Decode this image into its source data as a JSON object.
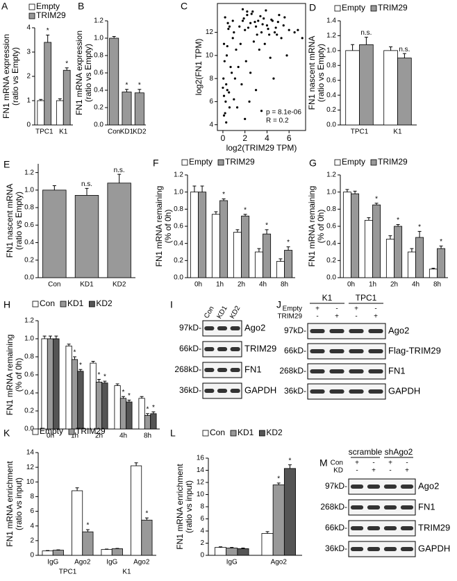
{
  "chart_data": [
    {
      "type": "bar",
      "panel": "A",
      "ylabel": [
        "FN1 mRNA expression",
        "(ratio vs Empty)"
      ],
      "categories": [
        "TPC1",
        "K1"
      ],
      "series": [
        {
          "name": "Empty",
          "color": "#ffffff",
          "values": [
            1.0,
            1.0
          ],
          "errors": [
            0.05,
            0.08
          ],
          "annotations": [
            null,
            null
          ]
        },
        {
          "name": "TRIM29",
          "color": "#999999",
          "values": [
            3.4,
            2.25
          ],
          "errors": [
            0.3,
            0.1
          ],
          "annotations": [
            "*",
            "*"
          ]
        }
      ],
      "ylim": [
        0,
        4
      ],
      "yticks": [
        0,
        1,
        2,
        3,
        4
      ]
    },
    {
      "type": "bar",
      "panel": "B",
      "ylabel": [
        "FN1 mRNA expression",
        "(ratio vs Empty)"
      ],
      "categories": [
        "Con",
        "KD1",
        "KD2"
      ],
      "series": [
        {
          "color": "#999999",
          "values": [
            1.0,
            0.38,
            0.37
          ],
          "errors": [
            0.02,
            0.03,
            0.04
          ],
          "annotations": [
            null,
            "*",
            "*"
          ]
        }
      ],
      "ylim": [
        0,
        1.2
      ],
      "yticks": [
        {
          "value": 0,
          "label": "0.0"
        },
        0.2,
        0.4,
        0.6,
        0.8,
        {
          "value": 1,
          "label": "1.0"
        },
        1.2
      ]
    },
    {
      "type": "scatter",
      "panel": "C",
      "xlabel": "log2(TRIM29 TPM)",
      "ylabel": "log2(FN1 TPM)",
      "annotations": [
        "p = 8.1e-06",
        "R = 0.2"
      ],
      "x": [
        0.1,
        0.2,
        0.05,
        0.3,
        0.15,
        0.4,
        0.1,
        0.25,
        0.5,
        0.6,
        0.2,
        0.35,
        0.8,
        0.1,
        0.45,
        0.7,
        0.3,
        0.9,
        1.0,
        0.55,
        1.2,
        1.5,
        1.8,
        2.0,
        2.2,
        2.5,
        2.7,
        3.0,
        3.2,
        3.5,
        3.7,
        4.0,
        4.2,
        4.5,
        4.8,
        5.0,
        5.3,
        5.6,
        6.0,
        6.5,
        1.6,
        1.9,
        2.3,
        2.6,
        2.9,
        3.1,
        3.4,
        3.6,
        3.9,
        4.1,
        4.4,
        4.7,
        5.1,
        5.5,
        2.1,
        2.8,
        3.3,
        3.8,
        4.3,
        4.9,
        1.1,
        1.4,
        1.7,
        2.4,
        3.0,
        0.6,
        0.9,
        1.3,
        2.0,
        2.5,
        7.2,
        6.8,
        0.0,
        0.4,
        1.0,
        3.5,
        4.6,
        5.8,
        2.2,
        1.8
      ],
      "y": [
        6.5,
        5.0,
        8.0,
        4.2,
        9.5,
        7.0,
        11.0,
        6.0,
        12.3,
        5.5,
        13.3,
        10.0,
        8.5,
        4.8,
        12.8,
        9.0,
        7.5,
        11.5,
        12.0,
        6.8,
        10.5,
        12.5,
        13.0,
        12.2,
        13.5,
        12.8,
        13.8,
        12.5,
        13.0,
        12.0,
        13.2,
        12.6,
        11.8,
        13.0,
        12.4,
        12.9,
        11.5,
        13.3,
        12.2,
        12.0,
        11.0,
        13.2,
        12.4,
        13.6,
        12.9,
        11.8,
        13.4,
        12.7,
        13.9,
        12.3,
        13.1,
        12.0,
        13.5,
        12.6,
        9.5,
        11.2,
        10.5,
        11.0,
        9.8,
        11.8,
        8.0,
        9.0,
        7.5,
        6.0,
        7.0,
        12.5,
        13.0,
        5.5,
        4.5,
        8.5,
        11.5,
        12.2,
        7.2,
        10.8,
        6.2,
        5.2,
        8.0,
        10.0,
        13.8,
        14.0
      ],
      "color": "#000000",
      "xlim": [
        -0.5,
        7.5
      ],
      "xticks": [
        0,
        2,
        4,
        6
      ],
      "ylim": [
        3.5,
        14.5
      ],
      "yticks": [
        4,
        6,
        8,
        10,
        12
      ]
    },
    {
      "type": "bar",
      "panel": "D",
      "ylabel": [
        "FN1 nascent mRNA",
        "(ratio vs Empty)"
      ],
      "categories": [
        "TPC1",
        "K1"
      ],
      "series": [
        {
          "name": "Empty",
          "color": "#ffffff",
          "values": [
            1.0,
            1.0
          ],
          "errors": [
            0.08,
            0.05
          ],
          "annotations": [
            null,
            null
          ]
        },
        {
          "name": "TRIM29",
          "color": "#999999",
          "values": [
            1.08,
            0.9
          ],
          "errors": [
            0.1,
            0.06
          ],
          "annotations": [
            "n.s.",
            "n.s."
          ]
        }
      ],
      "ylim": [
        0,
        1.4
      ],
      "yticks": [
        {
          "value": 0,
          "label": "0.0"
        },
        0.2,
        0.4,
        0.6,
        0.8,
        {
          "value": 1,
          "label": "1.0"
        },
        1.2,
        1.4
      ]
    },
    {
      "type": "bar",
      "panel": "E",
      "ylabel": [
        "FN1 nascent mRNA",
        "(ratio vs Empty)"
      ],
      "categories": [
        "Con",
        "KD1",
        "KD2"
      ],
      "series": [
        {
          "color": "#999999",
          "values": [
            1.0,
            0.94,
            1.08
          ],
          "errors": [
            0.05,
            0.08,
            0.1
          ],
          "annotations": [
            null,
            "n.s.",
            "n.s."
          ]
        }
      ],
      "ylim": [
        0,
        1.3
      ],
      "yticks": [
        {
          "value": 0,
          "label": "0.0"
        },
        0.2,
        0.4,
        0.6,
        0.8,
        {
          "value": 1,
          "label": "1.0"
        },
        1.2
      ]
    },
    {
      "type": "bar",
      "panel": "F",
      "ylabel": [
        "FN1 mRNA remaining",
        "(% of 0h)"
      ],
      "categories": [
        "0h",
        "1h",
        "2h",
        "4h",
        "8h"
      ],
      "series": [
        {
          "name": "Empty",
          "color": "#ffffff",
          "values": [
            1.0,
            0.74,
            0.53,
            0.3,
            0.19
          ],
          "errors": [
            0.07,
            0.03,
            0.03,
            0.04,
            0.03
          ],
          "annotations": [
            null,
            null,
            null,
            null,
            null
          ]
        },
        {
          "name": "TRIM29",
          "color": "#999999",
          "values": [
            1.0,
            0.9,
            0.72,
            0.51,
            0.32
          ],
          "errors": [
            0.07,
            0.02,
            0.02,
            0.05,
            0.04
          ],
          "annotations": [
            null,
            "*",
            "*",
            "*",
            "*"
          ]
        }
      ],
      "ylim": [
        0,
        1.2
      ],
      "yticks": [
        {
          "value": 0,
          "label": "0.0"
        },
        0.2,
        0.4,
        0.6,
        0.8,
        {
          "value": 1,
          "label": "1.0"
        },
        1.2
      ]
    },
    {
      "type": "bar",
      "panel": "G",
      "ylabel": [
        "FN1 mRNA remaining",
        "(% of 0h)"
      ],
      "categories": [
        "0h",
        "1h",
        "2h",
        "4h",
        "8h"
      ],
      "series": [
        {
          "name": "Empty",
          "color": "#ffffff",
          "values": [
            1.0,
            0.67,
            0.45,
            0.3,
            0.1
          ],
          "errors": [
            0.03,
            0.03,
            0.04,
            0.04,
            0.01
          ],
          "annotations": [
            null,
            null,
            null,
            null,
            null
          ]
        },
        {
          "name": "TRIM29",
          "color": "#999999",
          "values": [
            0.98,
            0.85,
            0.6,
            0.47,
            0.34
          ],
          "errors": [
            0.03,
            0.02,
            0.02,
            0.07,
            0.03
          ],
          "annotations": [
            null,
            "*",
            "*",
            "*",
            "*"
          ]
        }
      ],
      "ylim": [
        0,
        1.2
      ],
      "yticks": [
        {
          "value": 0,
          "label": "0.0"
        },
        0.2,
        0.4,
        0.6,
        0.8,
        {
          "value": 1,
          "label": "1.0"
        },
        1.2
      ]
    },
    {
      "type": "bar",
      "panel": "H",
      "ylabel": [
        "FN1 mRNA remaining",
        "(% of 0h)"
      ],
      "categories": [
        "0h",
        "1h",
        "2h",
        "4h",
        "8h"
      ],
      "series": [
        {
          "name": "Con",
          "color": "#ffffff",
          "values": [
            1.0,
            0.92,
            0.73,
            0.48,
            0.34
          ],
          "errors": [
            0.03,
            0.02,
            0.02,
            0.02,
            0.02
          ],
          "annotations": [
            null,
            null,
            null,
            null,
            null
          ]
        },
        {
          "name": "KD1",
          "color": "#999999",
          "values": [
            1.0,
            0.77,
            0.52,
            0.34,
            0.15
          ],
          "errors": [
            0.03,
            0.03,
            0.03,
            0.02,
            0.02
          ],
          "annotations": [
            null,
            "*",
            "*",
            "*",
            "*"
          ]
        },
        {
          "name": "KD2",
          "color": "#555555",
          "values": [
            1.0,
            0.64,
            0.51,
            0.3,
            0.17
          ],
          "errors": [
            0.03,
            0.02,
            0.02,
            0.02,
            0.02
          ],
          "annotations": [
            null,
            "*",
            "*",
            "*",
            "*"
          ]
        }
      ],
      "ylim": [
        0,
        1.2
      ],
      "yticks": [
        {
          "value": 0,
          "label": "0.0"
        },
        0.2,
        0.4,
        0.6,
        0.8,
        {
          "value": 1,
          "label": "1.0"
        },
        1.2
      ]
    },
    {
      "type": "bar",
      "panel": "K",
      "ylabel": [
        "FN1 mRNA enrichment",
        "(ratio vs input)"
      ],
      "categories": [
        "IgG",
        "Ago2",
        "IgG",
        "Ago2"
      ],
      "groups": [
        "TPC1",
        "K1"
      ],
      "series": [
        {
          "name": "Empty",
          "color": "#ffffff",
          "values": [
            0.6,
            8.8,
            0.8,
            12.2
          ],
          "errors": [
            0.05,
            0.4,
            0.05,
            0.4
          ],
          "annotations": [
            null,
            null,
            null,
            null
          ]
        },
        {
          "name": "TRIM29",
          "color": "#999999",
          "values": [
            0.7,
            3.2,
            0.9,
            4.8
          ],
          "errors": [
            0.05,
            0.3,
            0.05,
            0.3
          ],
          "annotations": [
            null,
            "*",
            null,
            "*"
          ]
        }
      ],
      "ylim": [
        0,
        14
      ],
      "yticks": [
        0,
        2,
        4,
        6,
        8,
        10,
        12,
        14
      ]
    },
    {
      "type": "bar",
      "panel": "L",
      "ylabel": [
        "FN1 mRNA enrichment",
        "(ratio vs input)"
      ],
      "categories": [
        "IgG",
        "Ago2"
      ],
      "series": [
        {
          "name": "Con",
          "color": "#ffffff",
          "values": [
            1.3,
            3.6
          ],
          "errors": [
            0.1,
            0.3
          ],
          "annotations": [
            null,
            null
          ]
        },
        {
          "name": "KD1",
          "color": "#999999",
          "values": [
            1.2,
            11.6
          ],
          "errors": [
            0.1,
            0.3
          ],
          "annotations": [
            null,
            "*"
          ]
        },
        {
          "name": "KD2",
          "color": "#555555",
          "values": [
            1.1,
            14.3
          ],
          "errors": [
            0.1,
            0.6
          ],
          "annotations": [
            null,
            "*"
          ]
        }
      ],
      "ylim": [
        0,
        16
      ],
      "yticks": [
        0,
        2,
        4,
        6,
        8,
        10,
        12,
        14,
        16
      ]
    }
  ],
  "blots": [
    {
      "panel": "I",
      "lanes": [
        "Con",
        "KD1",
        "KD2"
      ],
      "rows": [
        {
          "size": "97kD-",
          "protein": "Ago2"
        },
        {
          "size": "66kD-",
          "protein": "TRIM29"
        },
        {
          "size": "268kD-",
          "protein": "FN1"
        },
        {
          "size": "36kD-",
          "protein": "GAPDH"
        }
      ]
    },
    {
      "panel": "J",
      "groups": [
        "K1",
        "TPC1"
      ],
      "conditions": [
        {
          "name": "Empty",
          "signs": [
            "+",
            "-",
            "+",
            "-"
          ]
        },
        {
          "name": "TRIM29",
          "signs": [
            "-",
            "+",
            "-",
            "+"
          ]
        }
      ],
      "rows": [
        {
          "size": "97kD-",
          "protein": "Ago2"
        },
        {
          "size": "66kD-",
          "protein": "Flag-TRIM29"
        },
        {
          "size": "268kD-",
          "protein": "FN1"
        },
        {
          "size": "36kD-",
          "protein": "GAPDH"
        }
      ]
    },
    {
      "panel": "M",
      "groups": [
        "scramble",
        "shAgo2"
      ],
      "conditions": [
        {
          "name": "Con",
          "signs": [
            "+",
            "-",
            "+",
            "-"
          ]
        },
        {
          "name": "KD",
          "signs": [
            "-",
            "+",
            "-",
            "+"
          ]
        }
      ],
      "rows": [
        {
          "size": "97kD-",
          "protein": "Ago2"
        },
        {
          "size": "268kD-",
          "protein": "FN1"
        },
        {
          "size": "66kD-",
          "protein": "TRIM29"
        },
        {
          "size": "36kD-",
          "protein": "GAPDH"
        }
      ]
    }
  ]
}
